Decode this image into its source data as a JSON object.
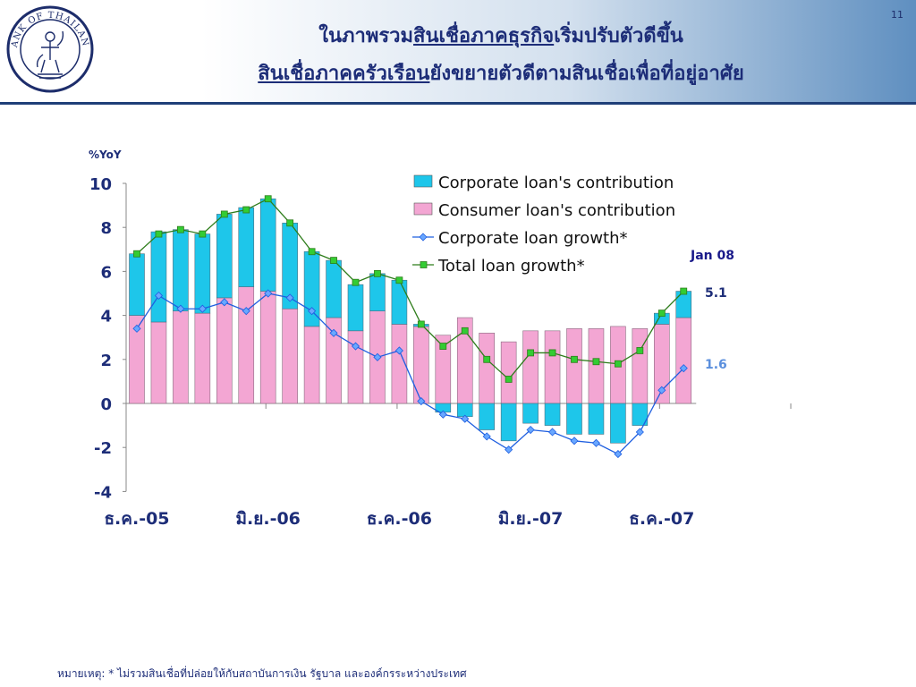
{
  "page": {
    "number": "11"
  },
  "logo": {
    "text": "BANK OF THAILAND"
  },
  "title": {
    "line1": {
      "pre": "ในภาพรวม",
      "underlined": "สินเชื่อภาคธุรกิจ",
      "post": "เริ่มปรับตัวดีขึ้น"
    },
    "line2": {
      "pre": "",
      "underlined": "สินเชื่อภาคครัวเรือน",
      "post": "ยังขยายตัวดีตามสินเชื่อเพื่อที่อยู่อาศัย"
    }
  },
  "footnote": "หมายเหตุ: * ไม่รวมสินเชื่อที่ปล่อยให้กับสถาบันการเงิน รัฐบาล และองค์กรระหว่างประเทศ",
  "colors": {
    "corporate_bar": "#1ec6ea",
    "consumer_bar": "#f3a6d3",
    "corporate_line": "#1f5fe0",
    "total_line": "#2e7d1b",
    "total_marker": "#33cc33",
    "corporate_marker": "#69a7ff",
    "annotation_navy": "#1a1a8a",
    "label_total": "#1d2d78",
    "label_corp": "#5b8fdd"
  },
  "chart_data": {
    "type": "bar",
    "ylabel": "%YoY",
    "ylim": [
      -4,
      10
    ],
    "yticks": [
      -4,
      -2,
      0,
      2,
      4,
      6,
      8,
      10
    ],
    "xtick_labels": [
      "ธ.ค.-05",
      "มิ.ย.-06",
      "ธ.ค.-06",
      "มิ.ย.-07",
      "ธ.ค.-07"
    ],
    "xtick_positions": [
      0,
      6,
      12,
      18,
      24
    ],
    "n_points": 26,
    "legend_position": "top-right",
    "series": [
      {
        "name": "Corporate loan's contribution",
        "kind": "stacked-bar",
        "values": [
          2.8,
          4.1,
          3.7,
          3.6,
          3.8,
          3.6,
          4.2,
          3.9,
          3.4,
          2.6,
          2.1,
          1.7,
          2.0,
          0.1,
          -0.4,
          -0.6,
          -1.2,
          -1.7,
          -0.9,
          -1.0,
          -1.4,
          -1.4,
          -1.8,
          -1.0,
          0.5,
          1.2
        ]
      },
      {
        "name": "Consumer loan's contribution",
        "kind": "stacked-bar",
        "values": [
          4.0,
          3.7,
          4.2,
          4.1,
          4.8,
          5.3,
          5.1,
          4.3,
          3.5,
          3.9,
          3.3,
          4.2,
          3.6,
          3.5,
          3.1,
          3.9,
          3.2,
          2.8,
          3.3,
          3.3,
          3.4,
          3.4,
          3.5,
          3.4,
          3.6,
          3.9
        ]
      },
      {
        "name": "Corporate loan growth*",
        "kind": "line",
        "values": [
          3.4,
          4.9,
          4.3,
          4.3,
          4.6,
          4.2,
          5.0,
          4.8,
          4.2,
          3.2,
          2.6,
          2.1,
          2.4,
          0.1,
          -0.5,
          -0.7,
          -1.5,
          -2.1,
          -1.2,
          -1.3,
          -1.7,
          -1.8,
          -2.3,
          -1.3,
          0.6,
          1.6
        ]
      },
      {
        "name": "Total loan growth*",
        "kind": "line",
        "values": [
          6.8,
          7.7,
          7.9,
          7.7,
          8.6,
          8.8,
          9.3,
          8.2,
          6.9,
          6.5,
          5.5,
          5.9,
          5.6,
          3.6,
          2.6,
          3.3,
          2.0,
          1.1,
          2.3,
          2.3,
          2.0,
          1.9,
          1.8,
          2.4,
          4.1,
          5.1
        ]
      }
    ],
    "annotations": {
      "period": "Jan 08",
      "total_value": "5.1",
      "corp_value": "1.6"
    }
  }
}
